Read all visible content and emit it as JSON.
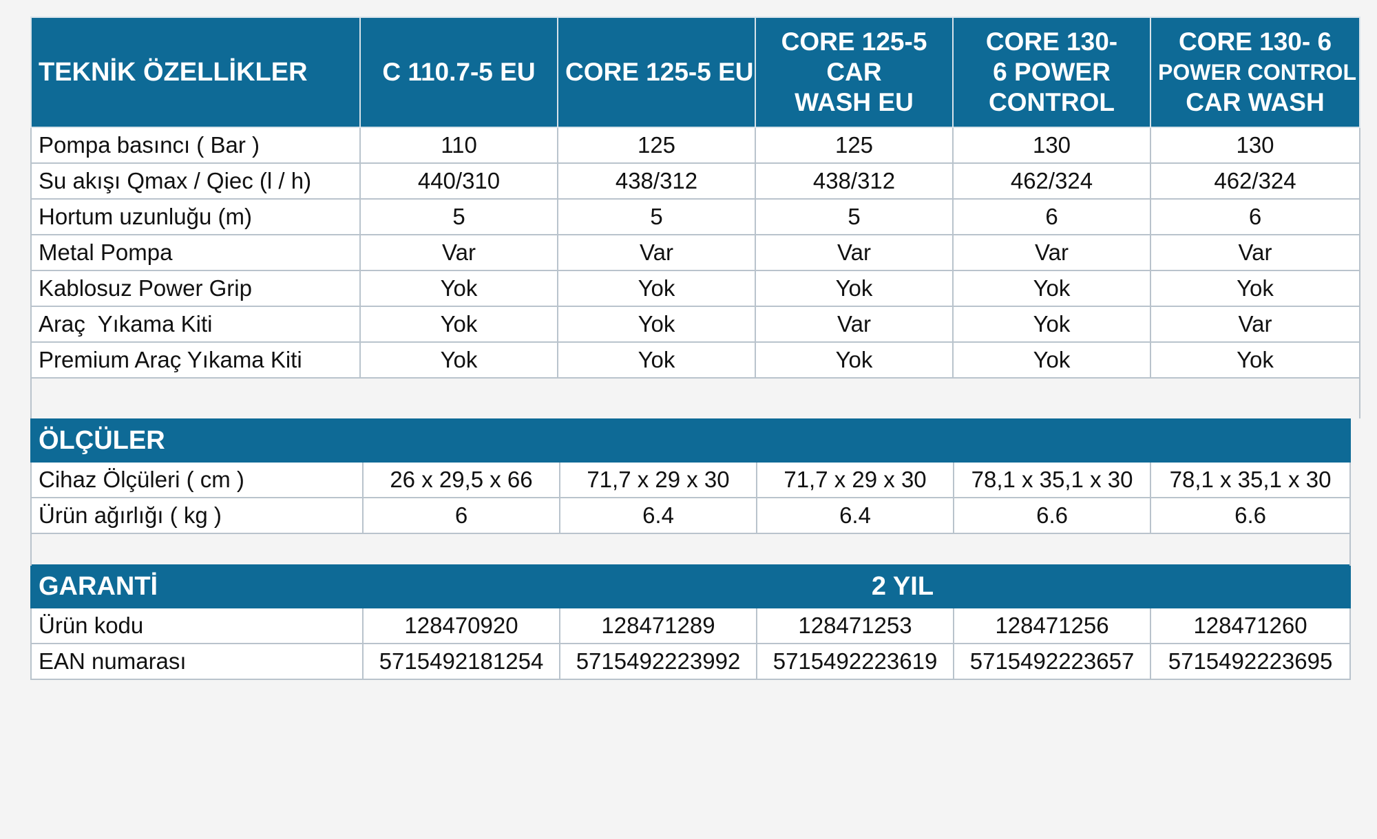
{
  "spec_table": {
    "header_title": "TEKNİK ÖZELLİKLER",
    "models": [
      {
        "lines": [
          "C 110.7-5 EU"
        ]
      },
      {
        "lines": [
          "CORE 125-5 EU"
        ]
      },
      {
        "lines": [
          "CORE 125-5",
          "CAR",
          "WASH EU"
        ]
      },
      {
        "lines": [
          "CORE 130-",
          "6 POWER",
          "CONTROL"
        ]
      },
      {
        "lines": [
          "CORE 130- 6",
          "POWER CONTROL",
          "CAR WASH"
        ]
      }
    ],
    "rows": [
      {
        "label": "Pompa basıncı ( Bar )",
        "values": [
          "110",
          "125",
          "125",
          "130",
          "130"
        ]
      },
      {
        "label": "Su akışı Qmax / Qiec (l / h)",
        "values": [
          "440/310",
          "438/312",
          "438/312",
          "462/324",
          "462/324"
        ]
      },
      {
        "label": "Hortum uzunluğu (m)",
        "values": [
          "5",
          "5",
          "5",
          "6",
          "6"
        ]
      },
      {
        "label": "Metal Pompa",
        "values": [
          "Var",
          "Var",
          "Var",
          "Var",
          "Var"
        ]
      },
      {
        "label": "Kablosuz Power Grip",
        "values": [
          "Yok",
          "Yok",
          "Yok",
          "Yok",
          "Yok"
        ]
      },
      {
        "label": "Araç  Yıkama Kiti",
        "values": [
          "Yok",
          "Yok",
          "Var",
          "Yok",
          "Var"
        ]
      },
      {
        "label": "Premium Araç Yıkama Kiti",
        "values": [
          "Yok",
          "Yok",
          "Yok",
          "Yok",
          "Yok"
        ]
      }
    ]
  },
  "dimensions": {
    "title": "ÖLÇÜLER",
    "rows": [
      {
        "label": "Cihaz Ölçüleri ( cm )",
        "values": [
          "26 x 29,5 x 66",
          "71,7 x 29 x 30",
          "71,7 x 29 x 30",
          "78,1 x 35,1 x 30",
          "78,1 x 35,1 x 30"
        ]
      },
      {
        "label": "Ürün ağırlığı ( kg )",
        "values": [
          "6",
          "6.4",
          "6.4",
          "6.6",
          "6.6"
        ]
      }
    ]
  },
  "warranty": {
    "title": "GARANTİ",
    "value": "2 YIL",
    "rows": [
      {
        "label": "Ürün kodu",
        "values": [
          "128470920",
          "128471289",
          "128471253",
          "128471256",
          "128471260"
        ]
      },
      {
        "label": "EAN numarası",
        "values": [
          "5715492181254",
          "5715492223992",
          "5715492223619",
          "5715492223657",
          "5715492223695"
        ]
      }
    ]
  },
  "colors": {
    "header_blue": "#0e6a96",
    "grid_line": "#b9c3cc",
    "page_background": "#f4f4f4"
  }
}
